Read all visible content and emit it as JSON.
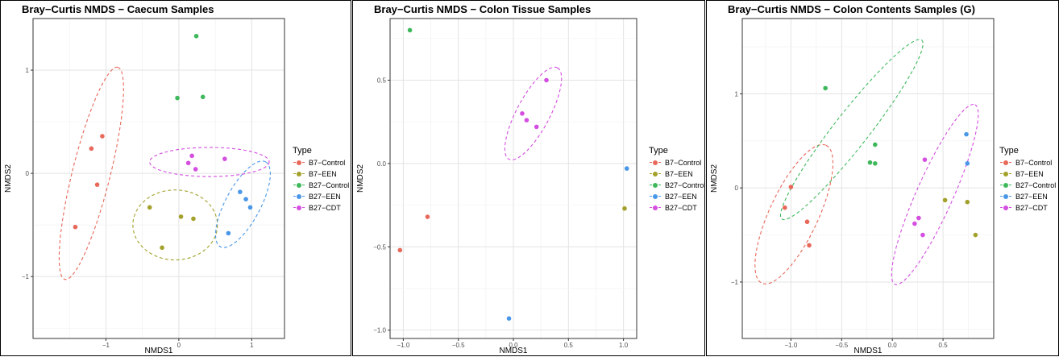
{
  "legend": {
    "title": "Type",
    "entries": [
      {
        "label": "B7−Control",
        "color": "#e8685a"
      },
      {
        "label": "B7−EEN",
        "color": "#a3a12b"
      },
      {
        "label": "B27−Control",
        "color": "#3fb85c"
      },
      {
        "label": "B27−EEN",
        "color": "#4a97e8"
      },
      {
        "label": "B27−CDT",
        "color": "#d44ee0"
      }
    ]
  },
  "chart_data": [
    {
      "type": "scatter",
      "title": "Bray−Curtis NMDS − Caecum Samples",
      "xlabel": "NMDS1",
      "ylabel": "NMDS2",
      "xlim": [
        -2.0,
        1.45
      ],
      "ylim": [
        -1.6,
        1.5
      ],
      "xticks": [
        -1,
        0,
        1
      ],
      "xticklabels": [
        "−1",
        "0",
        "1"
      ],
      "yticks": [
        -1,
        0,
        1
      ],
      "yticklabels": [
        "−1",
        "0",
        "1"
      ],
      "grid": true,
      "legend_position": "right",
      "series": [
        {
          "name": "B7−Control",
          "color": "#e8685a",
          "points": [
            [
              -1.05,
              0.36
            ],
            [
              -1.2,
              0.24
            ],
            [
              -1.12,
              -0.11
            ],
            [
              -1.42,
              -0.52
            ]
          ],
          "ellipse": {
            "cx": -1.2,
            "cy": 0.0,
            "rx": 1.5,
            "ry": 0.26,
            "angle": 76
          }
        },
        {
          "name": "B7−EEN",
          "color": "#a3a12b",
          "points": [
            [
              -0.4,
              -0.33
            ],
            [
              0.03,
              -0.42
            ],
            [
              0.2,
              -0.44
            ],
            [
              -0.23,
              -0.72
            ]
          ],
          "ellipse": {
            "cx": -0.05,
            "cy": -0.5,
            "rx": 0.58,
            "ry": 0.48,
            "angle": 0
          }
        },
        {
          "name": "B27−Control",
          "color": "#3fb85c",
          "points": [
            [
              0.24,
              1.33
            ],
            [
              -0.02,
              0.73
            ],
            [
              0.33,
              0.74
            ]
          ],
          "ellipse": null
        },
        {
          "name": "B27−EEN",
          "color": "#4a97e8",
          "points": [
            [
              0.84,
              -0.18
            ],
            [
              0.92,
              -0.25
            ],
            [
              0.98,
              -0.33
            ],
            [
              0.68,
              -0.58
            ]
          ],
          "ellipse": {
            "cx": 0.88,
            "cy": -0.3,
            "rx": 0.66,
            "ry": 0.24,
            "angle": 62
          }
        },
        {
          "name": "B27−CDT",
          "color": "#d44ee0",
          "points": [
            [
              0.18,
              0.17
            ],
            [
              0.13,
              0.1
            ],
            [
              0.23,
              0.04
            ],
            [
              0.63,
              0.14
            ]
          ],
          "ellipse": {
            "cx": 0.42,
            "cy": 0.11,
            "rx": 0.82,
            "ry": 0.2,
            "angle": 0
          }
        }
      ]
    },
    {
      "type": "scatter",
      "title": "Bray−Curtis NMDS − Colon Tissue Samples",
      "xlabel": "NMDS1",
      "ylabel": "NMDS2",
      "xlim": [
        -1.12,
        1.12
      ],
      "ylim": [
        -1.05,
        0.87
      ],
      "xticks": [
        -1.0,
        -0.5,
        0.0,
        0.5,
        1.0
      ],
      "xticklabels": [
        "−1.0",
        "−0.5",
        "0.0",
        "0.5",
        "1.0"
      ],
      "yticks": [
        -1.0,
        -0.5,
        0.0,
        0.5
      ],
      "yticklabels": [
        "−1.0",
        "−0.5",
        "0.0",
        "0.5"
      ],
      "grid": true,
      "legend_position": "right",
      "series": [
        {
          "name": "B7−Control",
          "color": "#e8685a",
          "points": [
            [
              -0.78,
              -0.32
            ],
            [
              -1.03,
              -0.52
            ]
          ],
          "ellipse": null
        },
        {
          "name": "B7−EEN",
          "color": "#a3a12b",
          "points": [
            [
              1.01,
              -0.27
            ]
          ],
          "ellipse": null
        },
        {
          "name": "B27−Control",
          "color": "#3fb85c",
          "points": [
            [
              -0.94,
              0.8
            ]
          ],
          "ellipse": null
        },
        {
          "name": "B27−EEN",
          "color": "#4a97e8",
          "points": [
            [
              1.03,
              -0.03
            ],
            [
              -0.04,
              -0.93
            ]
          ],
          "ellipse": null
        },
        {
          "name": "B27−CDT",
          "color": "#d44ee0",
          "points": [
            [
              0.3,
              0.5
            ],
            [
              0.08,
              0.3
            ],
            [
              0.12,
              0.26
            ],
            [
              0.21,
              0.22
            ]
          ],
          "ellipse": {
            "cx": 0.18,
            "cy": 0.3,
            "rx": 0.47,
            "ry": 0.15,
            "angle": 62
          }
        }
      ]
    },
    {
      "type": "scatter",
      "title": "Bray−Curtis NMDS − Colon Contents Samples (G)",
      "xlabel": "NMDS1",
      "ylabel": "NMDS2",
      "xlim": [
        -1.48,
        1.0
      ],
      "ylim": [
        -1.6,
        1.8
      ],
      "xticks": [
        -1.0,
        -0.5,
        0.0,
        0.5
      ],
      "xticklabels": [
        "−1.0",
        "−0.5",
        "0.0",
        "0.5"
      ],
      "yticks": [
        -1,
        0,
        1
      ],
      "yticklabels": [
        "−1",
        "0",
        "1"
      ],
      "grid": true,
      "legend_position": "right",
      "series": [
        {
          "name": "B7−Control",
          "color": "#e8685a",
          "points": [
            [
              -1.0,
              0.01
            ],
            [
              -1.06,
              -0.21
            ],
            [
              -0.84,
              -0.36
            ],
            [
              -0.82,
              -0.61
            ]
          ],
          "ellipse": {
            "cx": -0.97,
            "cy": -0.28,
            "rx": 0.75,
            "ry": 0.24,
            "angle": 65
          }
        },
        {
          "name": "B7−EEN",
          "color": "#a3a12b",
          "points": [
            [
              0.52,
              -0.13
            ],
            [
              0.74,
              -0.15
            ],
            [
              0.82,
              -0.5
            ]
          ],
          "ellipse": null
        },
        {
          "name": "B27−Control",
          "color": "#3fb85c",
          "points": [
            [
              -0.66,
              1.06
            ],
            [
              -0.17,
              0.46
            ],
            [
              -0.22,
              0.27
            ],
            [
              -0.17,
              0.26
            ]
          ],
          "ellipse": {
            "cx": -0.4,
            "cy": 0.62,
            "rx": 1.12,
            "ry": 0.17,
            "angle": 52
          }
        },
        {
          "name": "B27−EEN",
          "color": "#4a97e8",
          "points": [
            [
              0.73,
              0.57
            ],
            [
              0.74,
              0.26
            ]
          ],
          "ellipse": null
        },
        {
          "name": "B27−CDT",
          "color": "#d44ee0",
          "points": [
            [
              0.32,
              0.3
            ],
            [
              0.26,
              -0.32
            ],
            [
              0.22,
              -0.38
            ],
            [
              0.3,
              -0.5
            ]
          ],
          "ellipse": {
            "cx": 0.42,
            "cy": -0.07,
            "rx": 0.97,
            "ry": 0.18,
            "angle": 66
          }
        }
      ]
    }
  ]
}
